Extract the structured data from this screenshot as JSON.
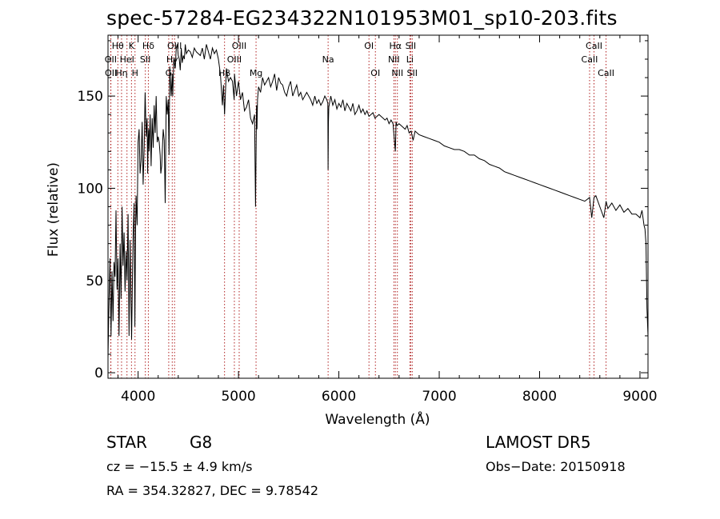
{
  "chart_data": {
    "type": "line",
    "title": "spec-57284-EG234322N101953M01_sp10-203.fits",
    "xlabel": "Wavelength (Å)",
    "ylabel": "Flux (relative)",
    "xlim": [
      3700,
      9080
    ],
    "ylim": [
      -3,
      183
    ],
    "xticks": [
      4000,
      5000,
      6000,
      7000,
      8000,
      9000
    ],
    "yticks": [
      0,
      50,
      100,
      150
    ],
    "series": [
      {
        "x": [
          3700,
          3710,
          3720,
          3730,
          3740,
          3750,
          3760,
          3770,
          3780,
          3790,
          3800,
          3810,
          3820,
          3830,
          3840,
          3850,
          3860,
          3870,
          3880,
          3890,
          3900,
          3910,
          3920,
          3930,
          3935,
          3945,
          3950,
          3960,
          3968,
          3975,
          3980,
          3990,
          4000,
          4010,
          4020,
          4030,
          4040,
          4050,
          4060,
          4070,
          4080,
          4090,
          4095,
          4100,
          4105,
          4110,
          4120,
          4130,
          4140,
          4150,
          4160,
          4170,
          4180,
          4190,
          4200,
          4210,
          4220,
          4226,
          4235,
          4250,
          4260,
          4270,
          4280,
          4290,
          4300,
          4308,
          4315,
          4320,
          4330,
          4340,
          4345,
          4355,
          4370,
          4380,
          4390,
          4400,
          4410,
          4420,
          4430,
          4440,
          4450,
          4460,
          4470,
          4480,
          4500,
          4520,
          4540,
          4560,
          4580,
          4600,
          4620,
          4640,
          4660,
          4680,
          4700,
          4720,
          4740,
          4760,
          4780,
          4800,
          4820,
          4840,
          4850,
          4861,
          4870,
          4880,
          4900,
          4920,
          4940,
          4957,
          4960,
          4980,
          5000,
          5020,
          5040,
          5060,
          5080,
          5100,
          5120,
          5140,
          5160,
          5170,
          5175,
          5180,
          5184,
          5190,
          5200,
          5220,
          5240,
          5260,
          5280,
          5300,
          5320,
          5340,
          5360,
          5380,
          5400,
          5420,
          5440,
          5460,
          5480,
          5500,
          5520,
          5540,
          5560,
          5580,
          5600,
          5620,
          5640,
          5660,
          5680,
          5700,
          5720,
          5740,
          5760,
          5780,
          5800,
          5820,
          5840,
          5860,
          5880,
          5890,
          5893,
          5896,
          5900,
          5920,
          5940,
          5960,
          5980,
          6000,
          6020,
          6040,
          6060,
          6080,
          6100,
          6120,
          6140,
          6160,
          6180,
          6200,
          6220,
          6240,
          6260,
          6280,
          6300,
          6320,
          6340,
          6360,
          6380,
          6400,
          6420,
          6440,
          6460,
          6480,
          6500,
          6520,
          6540,
          6555,
          6563,
          6570,
          6580,
          6600,
          6620,
          6640,
          6660,
          6680,
          6700,
          6720,
          6740,
          6760,
          6780,
          6800,
          6850,
          6900,
          6950,
          7000,
          7050,
          7100,
          7150,
          7200,
          7250,
          7300,
          7350,
          7400,
          7450,
          7500,
          7550,
          7600,
          7650,
          7700,
          7750,
          7800,
          7850,
          7900,
          7950,
          8000,
          8050,
          8100,
          8150,
          8200,
          8250,
          8300,
          8350,
          8400,
          8450,
          8498,
          8520,
          8542,
          8560,
          8600,
          8640,
          8662,
          8680,
          8720,
          8760,
          8800,
          8840,
          8880,
          8920,
          8960,
          9000,
          9020,
          9040,
          9050,
          9060,
          9070,
          9080
        ],
        "y": [
          8,
          40,
          62,
          20,
          55,
          28,
          60,
          52,
          88,
          45,
          62,
          20,
          70,
          40,
          90,
          58,
          76,
          44,
          66,
          50,
          86,
          20,
          72,
          35,
          18,
          56,
          74,
          92,
          25,
          80,
          96,
          80,
          125,
          132,
          108,
          115,
          136,
          102,
          122,
          152,
          128,
          138,
          108,
          126,
          132,
          120,
          140,
          112,
          138,
          122,
          145,
          130,
          150,
          125,
          128,
          125,
          118,
          108,
          112,
          132,
          126,
          92,
          150,
          140,
          148,
          118,
          166,
          160,
          150,
          162,
          150,
          170,
          165,
          176,
          178,
          172,
          170,
          164,
          176,
          168,
          172,
          170,
          178,
          173,
          175,
          174,
          171,
          176,
          174,
          173,
          172,
          176,
          170,
          178,
          174,
          170,
          176,
          173,
          175,
          170,
          162,
          145,
          156,
          140,
          152,
          165,
          158,
          160,
          158,
          148,
          162,
          150,
          158,
          148,
          152,
          142,
          144,
          148,
          138,
          135,
          140,
          90,
          120,
          145,
          132,
          148,
          155,
          152,
          160,
          156,
          158,
          160,
          155,
          158,
          162,
          153,
          160,
          157,
          156,
          152,
          150,
          155,
          158,
          150,
          153,
          156,
          150,
          152,
          148,
          150,
          152,
          150,
          148,
          145,
          150,
          146,
          148,
          145,
          147,
          150,
          148,
          146,
          110,
          135,
          144,
          150,
          145,
          148,
          143,
          146,
          144,
          148,
          142,
          146,
          144,
          142,
          146,
          140,
          142,
          145,
          141,
          143,
          140,
          142,
          139,
          140,
          141,
          138,
          139,
          140,
          139,
          138,
          137,
          138,
          135,
          137,
          135,
          125,
          120,
          136,
          134,
          135,
          134,
          133,
          132,
          134,
          130,
          131,
          126,
          131,
          130,
          129,
          128,
          127,
          126,
          125,
          123,
          122,
          121,
          121,
          120,
          118,
          118,
          116,
          115,
          113,
          112,
          111,
          109,
          108,
          107,
          106,
          105,
          104,
          103,
          102,
          101,
          100,
          99,
          98,
          97,
          96,
          95,
          94,
          93,
          95,
          84,
          95,
          96,
          90,
          84,
          93,
          89,
          92,
          88,
          91,
          87,
          89,
          86,
          86,
          84,
          88,
          80,
          78,
          70,
          35,
          20
        ]
      }
    ],
    "lines": [
      {
        "label": "Hθ",
        "x": 3798,
        "row": 1
      },
      {
        "label": "OII",
        "x": 3727,
        "row": 2
      },
      {
        "label": "OII",
        "x": 3729,
        "row": 3
      },
      {
        "label": "K",
        "x": 3934,
        "row": 1
      },
      {
        "label": "HeI",
        "x": 3889,
        "row": 2
      },
      {
        "label": "Hη",
        "x": 3835,
        "row": 3
      },
      {
        "label": "SII",
        "x": 4072,
        "row": 2
      },
      {
        "label": "H",
        "x": 3969,
        "row": 3
      },
      {
        "label": "Hδ",
        "x": 4102,
        "row": 1
      },
      {
        "label": "OIII",
        "x": 4363,
        "row": 1
      },
      {
        "label": "Hγ",
        "x": 4340,
        "row": 2
      },
      {
        "label": "G",
        "x": 4305,
        "row": 3
      },
      {
        "label": "OIII",
        "x": 5007,
        "row": 1
      },
      {
        "label": "OIII",
        "x": 4959,
        "row": 2
      },
      {
        "label": "Hβ",
        "x": 4861,
        "row": 3
      },
      {
        "label": "Mg",
        "x": 5175,
        "row": 3
      },
      {
        "label": "Na",
        "x": 5893,
        "row": 2
      },
      {
        "label": "OI",
        "x": 6300,
        "row": 1
      },
      {
        "label": "OI",
        "x": 6364,
        "row": 3
      },
      {
        "label": "Hα",
        "x": 6563,
        "row": 1
      },
      {
        "label": "NII",
        "x": 6548,
        "row": 2
      },
      {
        "label": "NII",
        "x": 6583,
        "row": 3
      },
      {
        "label": "SII",
        "x": 6716,
        "row": 1
      },
      {
        "label": "Li",
        "x": 6708,
        "row": 2
      },
      {
        "label": "SII",
        "x": 6731,
        "row": 3
      },
      {
        "label": "CaII",
        "x": 8542,
        "row": 1
      },
      {
        "label": "CaII",
        "x": 8498,
        "row": 2
      },
      {
        "label": "CaII",
        "x": 8662,
        "row": 3
      }
    ],
    "colors": {
      "spectrum": "#000000",
      "line_markers": "#b02020",
      "axes": "#000000"
    }
  },
  "info": {
    "object_class": "STAR",
    "subclass": "G8",
    "survey": "LAMOST DR5",
    "cz": "cz = −15.5 ± 4.9 km/s",
    "obs_date": "Obs−Date: 20150918",
    "coords": "RA = 354.32827, DEC =    9.78542"
  }
}
